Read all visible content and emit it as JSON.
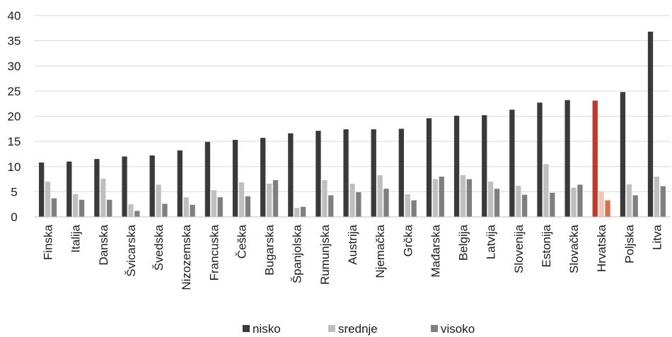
{
  "chart_data": {
    "type": "bar",
    "categories": [
      "Finska",
      "Italija",
      "Danska",
      "Švicarska",
      "Švedska",
      "Nizozemska",
      "Francuska",
      "Češka",
      "Bugarska",
      "Španjolska",
      "Rumunjska",
      "Austrija",
      "Njemačka",
      "Grčka",
      "Mađarska",
      "Belgija",
      "Latvija",
      "Slovenija",
      "Estonija",
      "Slovačka",
      "Hrvatska",
      "Poljska",
      "Litva"
    ],
    "series": [
      {
        "name": "nisko",
        "color": "#3a3a3a",
        "values": [
          10.8,
          11.0,
          11.5,
          12.0,
          12.2,
          13.2,
          14.9,
          15.3,
          15.7,
          16.6,
          17.1,
          17.4,
          17.4,
          17.5,
          19.6,
          20.1,
          20.2,
          21.3,
          22.7,
          23.2,
          23.1,
          24.8,
          36.8
        ]
      },
      {
        "name": "srednje",
        "color": "#bfbfbf",
        "values": [
          7.0,
          4.5,
          7.6,
          2.5,
          6.4,
          3.9,
          5.3,
          6.9,
          6.6,
          1.8,
          7.3,
          6.6,
          8.3,
          4.5,
          7.5,
          8.3,
          7.0,
          6.2,
          10.5,
          5.8,
          5.1,
          6.5,
          8.0
        ]
      },
      {
        "name": "visoko",
        "color": "#7f7f7f",
        "values": [
          3.7,
          3.4,
          3.4,
          1.2,
          2.6,
          2.4,
          3.9,
          4.1,
          7.3,
          2.0,
          4.3,
          4.9,
          5.6,
          3.3,
          8.0,
          7.5,
          5.6,
          4.4,
          4.8,
          6.4,
          3.3,
          4.3,
          6.1
        ]
      }
    ],
    "highlight": {
      "category": "Hrvatska",
      "colors": [
        "#c0392b",
        "#f2c4b8",
        "#d9734e"
      ]
    },
    "ylim": [
      0,
      40
    ],
    "yticks": [
      0,
      5,
      10,
      15,
      20,
      25,
      30,
      35,
      40
    ],
    "grid": true,
    "legend": "bottom-center",
    "title": "",
    "xlabel": "",
    "ylabel": ""
  }
}
